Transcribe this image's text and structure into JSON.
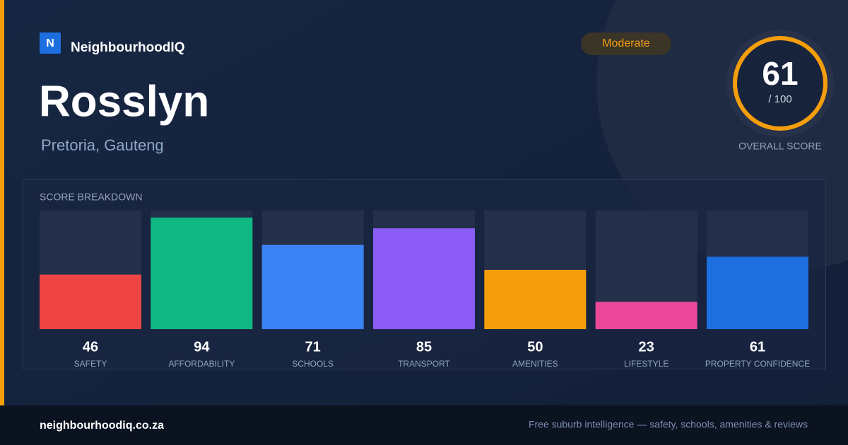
{
  "brand": {
    "logo_letter": "N",
    "name": "NeighbourhoodIQ"
  },
  "header": {
    "title": "Rosslyn",
    "subtitle": "Pretoria, Gauteng",
    "badge": "Moderate"
  },
  "overall": {
    "score": 61,
    "out_of": "/ 100",
    "label": "OVERALL SCORE"
  },
  "chart_data": {
    "type": "bar",
    "title": "SCORE BREAKDOWN",
    "categories": [
      "SAFETY",
      "AFFORDABILITY",
      "SCHOOLS",
      "TRANSPORT",
      "AMENITIES",
      "LIFESTYLE",
      "PROPERTY CONFIDENCE"
    ],
    "values": [
      46,
      94,
      71,
      85,
      50,
      23,
      61
    ],
    "colors": [
      "#ef4444",
      "#10b981",
      "#3b82f6",
      "#8b5cf6",
      "#f59e0b",
      "#ec4899",
      "#1d6fe0"
    ],
    "ylim": [
      0,
      100
    ]
  },
  "footer": {
    "site": "neighbourhoodiq.co.za",
    "tagline": "Free suburb intelligence — safety, schools, amenities & reviews"
  }
}
